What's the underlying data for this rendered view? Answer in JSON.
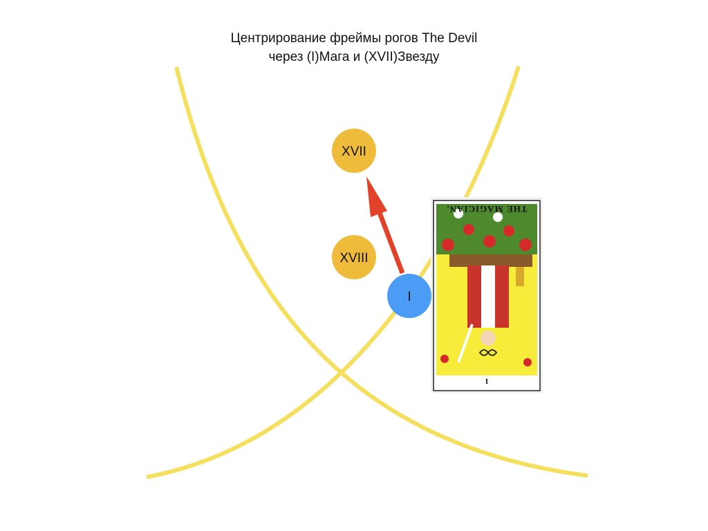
{
  "title": {
    "line1": "Центрирование фреймы рогов The Devil",
    "line2": "через (I)Мага и (XVII)Звезду"
  },
  "nodes": {
    "xvii": {
      "label": "XVII",
      "color": "#efbb3a"
    },
    "xviii": {
      "label": "XVIII",
      "color": "#efbb3a"
    },
    "i": {
      "label": "I",
      "color": "#4b9cf5"
    }
  },
  "card": {
    "caption": "THE MAGICIAN.",
    "numeral": "I",
    "orientation": "reversed"
  },
  "colors": {
    "horn_curve": "#f4e05e",
    "arrow": "#e0432a"
  }
}
